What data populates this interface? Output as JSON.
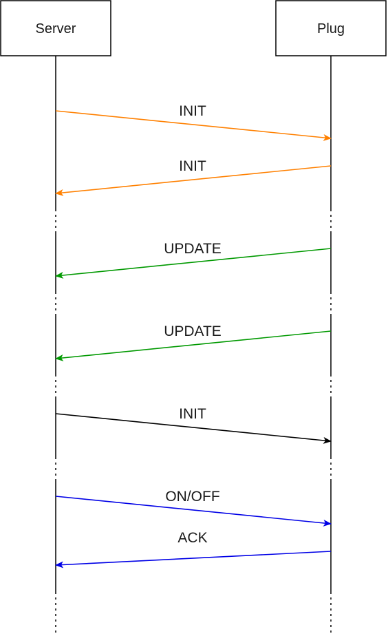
{
  "participants": [
    {
      "id": "server",
      "label": "Server"
    },
    {
      "id": "plug",
      "label": "Plug"
    }
  ],
  "messages": [
    {
      "from": "server",
      "to": "plug",
      "label": "INIT",
      "color": "#ff8000"
    },
    {
      "from": "plug",
      "to": "server",
      "label": "INIT",
      "color": "#ff8000"
    },
    {
      "from": "plug",
      "to": "server",
      "label": "UPDATE",
      "color": "#009900"
    },
    {
      "from": "plug",
      "to": "server",
      "label": "UPDATE",
      "color": "#009900"
    },
    {
      "from": "server",
      "to": "plug",
      "label": "INIT",
      "color": "#000000"
    },
    {
      "from": "server",
      "to": "plug",
      "label": "ON/OFF",
      "color": "#0000e6"
    },
    {
      "from": "plug",
      "to": "server",
      "label": "ACK",
      "color": "#0000e6"
    }
  ]
}
